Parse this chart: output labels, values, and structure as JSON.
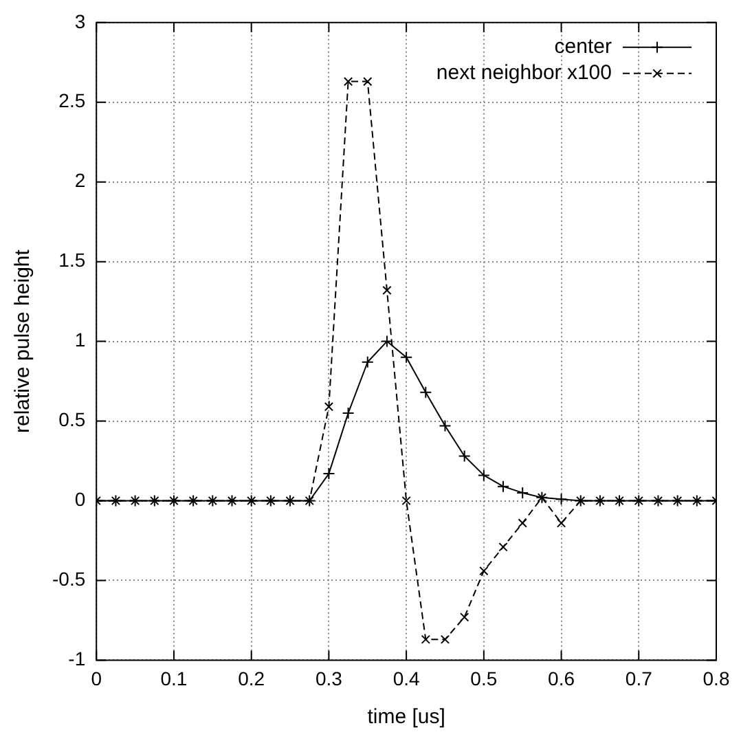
{
  "chart_data": {
    "type": "line",
    "xlabel": "time [us]",
    "ylabel": "relative pulse height",
    "x": [
      0,
      0.025,
      0.05,
      0.075,
      0.1,
      0.125,
      0.15,
      0.175,
      0.2,
      0.225,
      0.25,
      0.275,
      0.3,
      0.325,
      0.35,
      0.375,
      0.4,
      0.425,
      0.45,
      0.475,
      0.5,
      0.525,
      0.55,
      0.575,
      0.6,
      0.625,
      0.65,
      0.675,
      0.7,
      0.725,
      0.75,
      0.775,
      0.8
    ],
    "series": [
      {
        "name": "center",
        "color": "#000000",
        "marker": "plus",
        "line_style": "solid",
        "values": [
          0,
          0,
          0,
          0,
          0,
          0,
          0,
          0,
          0,
          0,
          0,
          0,
          0.17,
          0.55,
          0.87,
          1.0,
          0.9,
          0.68,
          0.47,
          0.28,
          0.16,
          0.09,
          0.05,
          0.02,
          0.01,
          0,
          0,
          0,
          0,
          0,
          0,
          0,
          0
        ]
      },
      {
        "name": "next neighbor x100",
        "color": "#000000",
        "marker": "cross",
        "line_style": "dashed",
        "values": [
          0,
          0,
          0,
          0,
          0,
          0,
          0,
          0,
          0,
          0,
          0,
          0,
          0.59,
          2.63,
          2.63,
          1.32,
          0,
          -0.87,
          -0.87,
          -0.73,
          -0.44,
          -0.29,
          -0.14,
          0.02,
          -0.14,
          0,
          0,
          0,
          0,
          0,
          0,
          0,
          0
        ]
      }
    ],
    "xlim": [
      0,
      0.8
    ],
    "xticks": [
      0,
      0.1,
      0.2,
      0.3,
      0.4,
      0.5,
      0.6,
      0.7,
      0.8
    ],
    "ylim": [
      -1,
      3
    ],
    "yticks": [
      -1,
      -0.5,
      0,
      0.5,
      1,
      1.5,
      2,
      2.5,
      3
    ],
    "grid": true,
    "legend": "top right"
  }
}
